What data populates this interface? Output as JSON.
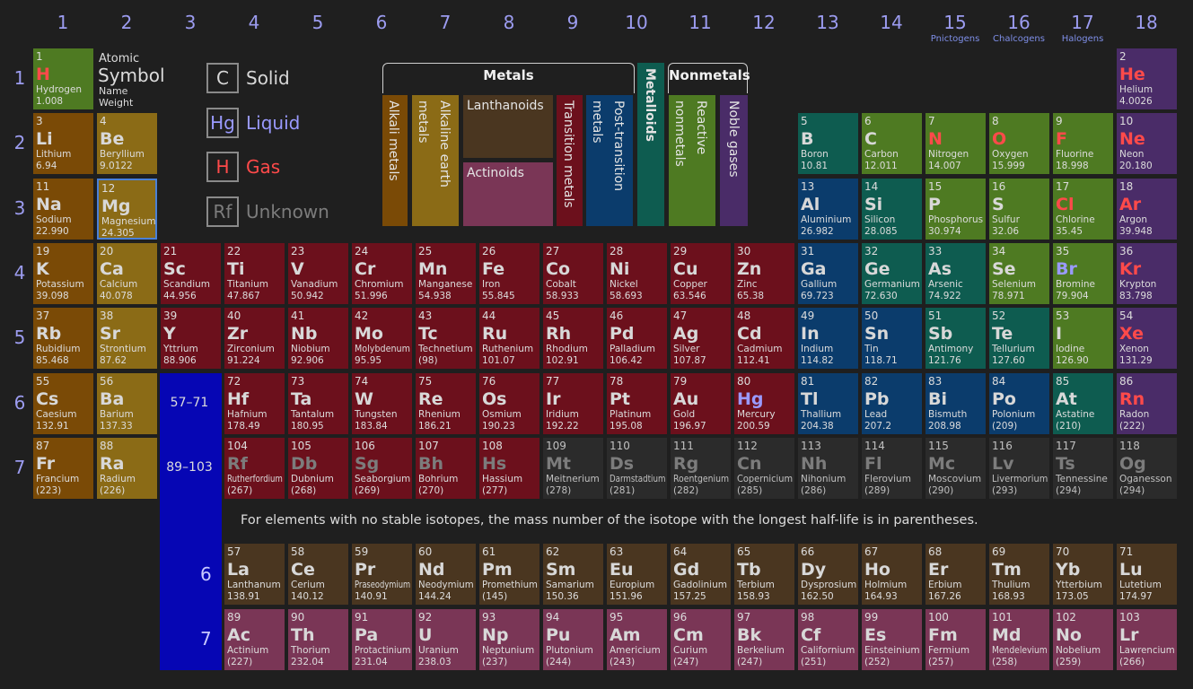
{
  "title_key": {
    "number": "Atomic",
    "symbol": "Symbol",
    "name": "Name",
    "weight": "Weight"
  },
  "groups": [
    {
      "number": 1
    },
    {
      "number": 2
    },
    {
      "number": 3
    },
    {
      "number": 4
    },
    {
      "number": 5
    },
    {
      "number": 6
    },
    {
      "number": 7
    },
    {
      "number": 8
    },
    {
      "number": 9
    },
    {
      "number": 10
    },
    {
      "number": 11
    },
    {
      "number": 12
    },
    {
      "number": 13
    },
    {
      "number": 14
    },
    {
      "number": 15,
      "note": "Pnictogens"
    },
    {
      "number": 16,
      "note": "Chalcogens"
    },
    {
      "number": 17,
      "note": "Halogens"
    },
    {
      "number": 18
    }
  ],
  "periods": [
    1,
    2,
    3,
    4,
    5,
    6,
    7
  ],
  "f_block_ranges": [
    "57–71",
    "89–103"
  ],
  "note": "For elements with no stable isotopes, the mass number of the isotope with the longest half-life is in parentheses.",
  "selected": 12,
  "category_groups": [
    "Metals",
    "Nonmetals"
  ],
  "categories": [
    {
      "label": "Alkali metals",
      "color": "#7a4a06"
    },
    {
      "label": "Alkaline earth metals",
      "color": "#8b6b16"
    },
    {
      "label": "Lanthanoids",
      "color": "#4a3620"
    },
    {
      "label": "Actinoids",
      "color": "#7a3656"
    },
    {
      "label": "Transition metals",
      "color": "#6c101c"
    },
    {
      "label": "Post-transition metals",
      "color": "#0b3c6c"
    },
    {
      "label": "Metalloids",
      "color": "#0e5c50"
    },
    {
      "label": "Reactive nonmetals",
      "color": "#4e7a22"
    },
    {
      "label": "Noble gases",
      "color": "#4a2c68"
    },
    {
      "color": "#2b2b2b"
    }
  ],
  "states": [
    {
      "symbol": "C",
      "label": "Solid",
      "color": "#d8d8d8"
    },
    {
      "symbol": "Hg",
      "label": "Liquid",
      "color": "#9a9aff"
    },
    {
      "symbol": "H",
      "label": "Gas",
      "color": "#ff4a4a"
    },
    {
      "symbol": "Rf",
      "label": "Unknown",
      "color": "#7c7c7c"
    }
  ],
  "elements": [
    {
      "n": 1,
      "s": "H",
      "name": "Hydrogen",
      "w": "1.008",
      "cat": 7,
      "st": 2
    },
    {
      "n": 2,
      "s": "He",
      "name": "Helium",
      "w": "4.0026",
      "cat": 8,
      "st": 2
    },
    {
      "n": 3,
      "s": "Li",
      "name": "Lithium",
      "w": "6.94",
      "cat": 0,
      "st": 0
    },
    {
      "n": 4,
      "s": "Be",
      "name": "Beryllium",
      "w": "9.0122",
      "cat": 1,
      "st": 0
    },
    {
      "n": 5,
      "s": "B",
      "name": "Boron",
      "w": "10.81",
      "cat": 6,
      "st": 0
    },
    {
      "n": 6,
      "s": "C",
      "name": "Carbon",
      "w": "12.011",
      "cat": 7,
      "st": 0
    },
    {
      "n": 7,
      "s": "N",
      "name": "Nitrogen",
      "w": "14.007",
      "cat": 7,
      "st": 2
    },
    {
      "n": 8,
      "s": "O",
      "name": "Oxygen",
      "w": "15.999",
      "cat": 7,
      "st": 2
    },
    {
      "n": 9,
      "s": "F",
      "name": "Fluorine",
      "w": "18.998",
      "cat": 7,
      "st": 2
    },
    {
      "n": 10,
      "s": "Ne",
      "name": "Neon",
      "w": "20.180",
      "cat": 8,
      "st": 2
    },
    {
      "n": 11,
      "s": "Na",
      "name": "Sodium",
      "w": "22.990",
      "cat": 0,
      "st": 0
    },
    {
      "n": 12,
      "s": "Mg",
      "name": "Magnesium",
      "w": "24.305",
      "cat": 1,
      "st": 0
    },
    {
      "n": 13,
      "s": "Al",
      "name": "Aluminium",
      "w": "26.982",
      "cat": 5,
      "st": 0
    },
    {
      "n": 14,
      "s": "Si",
      "name": "Silicon",
      "w": "28.085",
      "cat": 6,
      "st": 0
    },
    {
      "n": 15,
      "s": "P",
      "name": "Phosphorus",
      "w": "30.974",
      "cat": 7,
      "st": 0
    },
    {
      "n": 16,
      "s": "S",
      "name": "Sulfur",
      "w": "32.06",
      "cat": 7,
      "st": 0
    },
    {
      "n": 17,
      "s": "Cl",
      "name": "Chlorine",
      "w": "35.45",
      "cat": 7,
      "st": 2
    },
    {
      "n": 18,
      "s": "Ar",
      "name": "Argon",
      "w": "39.948",
      "cat": 8,
      "st": 2
    },
    {
      "n": 19,
      "s": "K",
      "name": "Potassium",
      "w": "39.098",
      "cat": 0,
      "st": 0
    },
    {
      "n": 20,
      "s": "Ca",
      "name": "Calcium",
      "w": "40.078",
      "cat": 1,
      "st": 0
    },
    {
      "n": 21,
      "s": "Sc",
      "name": "Scandium",
      "w": "44.956",
      "cat": 4,
      "st": 0
    },
    {
      "n": 22,
      "s": "Ti",
      "name": "Titanium",
      "w": "47.867",
      "cat": 4,
      "st": 0
    },
    {
      "n": 23,
      "s": "V",
      "name": "Vanadium",
      "w": "50.942",
      "cat": 4,
      "st": 0
    },
    {
      "n": 24,
      "s": "Cr",
      "name": "Chromium",
      "w": "51.996",
      "cat": 4,
      "st": 0
    },
    {
      "n": 25,
      "s": "Mn",
      "name": "Manganese",
      "w": "54.938",
      "cat": 4,
      "st": 0
    },
    {
      "n": 26,
      "s": "Fe",
      "name": "Iron",
      "w": "55.845",
      "cat": 4,
      "st": 0
    },
    {
      "n": 27,
      "s": "Co",
      "name": "Cobalt",
      "w": "58.933",
      "cat": 4,
      "st": 0
    },
    {
      "n": 28,
      "s": "Ni",
      "name": "Nickel",
      "w": "58.693",
      "cat": 4,
      "st": 0
    },
    {
      "n": 29,
      "s": "Cu",
      "name": "Copper",
      "w": "63.546",
      "cat": 4,
      "st": 0
    },
    {
      "n": 30,
      "s": "Zn",
      "name": "Zinc",
      "w": "65.38",
      "cat": 4,
      "st": 0
    },
    {
      "n": 31,
      "s": "Ga",
      "name": "Gallium",
      "w": "69.723",
      "cat": 5,
      "st": 0
    },
    {
      "n": 32,
      "s": "Ge",
      "name": "Germanium",
      "w": "72.630",
      "cat": 6,
      "st": 0
    },
    {
      "n": 33,
      "s": "As",
      "name": "Arsenic",
      "w": "74.922",
      "cat": 6,
      "st": 0
    },
    {
      "n": 34,
      "s": "Se",
      "name": "Selenium",
      "w": "78.971",
      "cat": 7,
      "st": 0
    },
    {
      "n": 35,
      "s": "Br",
      "name": "Bromine",
      "w": "79.904",
      "cat": 7,
      "st": 1
    },
    {
      "n": 36,
      "s": "Kr",
      "name": "Krypton",
      "w": "83.798",
      "cat": 8,
      "st": 2
    },
    {
      "n": 37,
      "s": "Rb",
      "name": "Rubidium",
      "w": "85.468",
      "cat": 0,
      "st": 0
    },
    {
      "n": 38,
      "s": "Sr",
      "name": "Strontium",
      "w": "87.62",
      "cat": 1,
      "st": 0
    },
    {
      "n": 39,
      "s": "Y",
      "name": "Yttrium",
      "w": "88.906",
      "cat": 4,
      "st": 0
    },
    {
      "n": 40,
      "s": "Zr",
      "name": "Zirconium",
      "w": "91.224",
      "cat": 4,
      "st": 0
    },
    {
      "n": 41,
      "s": "Nb",
      "name": "Niobium",
      "w": "92.906",
      "cat": 4,
      "st": 0
    },
    {
      "n": 42,
      "s": "Mo",
      "name": "Molybdenum",
      "w": "95.95",
      "cat": 4,
      "st": 0
    },
    {
      "n": 43,
      "s": "Tc",
      "name": "Technetium",
      "w": "(98)",
      "cat": 4,
      "st": 0
    },
    {
      "n": 44,
      "s": "Ru",
      "name": "Ruthenium",
      "w": "101.07",
      "cat": 4,
      "st": 0
    },
    {
      "n": 45,
      "s": "Rh",
      "name": "Rhodium",
      "w": "102.91",
      "cat": 4,
      "st": 0
    },
    {
      "n": 46,
      "s": "Pd",
      "name": "Palladium",
      "w": "106.42",
      "cat": 4,
      "st": 0
    },
    {
      "n": 47,
      "s": "Ag",
      "name": "Silver",
      "w": "107.87",
      "cat": 4,
      "st": 0
    },
    {
      "n": 48,
      "s": "Cd",
      "name": "Cadmium",
      "w": "112.41",
      "cat": 4,
      "st": 0
    },
    {
      "n": 49,
      "s": "In",
      "name": "Indium",
      "w": "114.82",
      "cat": 5,
      "st": 0
    },
    {
      "n": 50,
      "s": "Sn",
      "name": "Tin",
      "w": "118.71",
      "cat": 5,
      "st": 0
    },
    {
      "n": 51,
      "s": "Sb",
      "name": "Antimony",
      "w": "121.76",
      "cat": 6,
      "st": 0
    },
    {
      "n": 52,
      "s": "Te",
      "name": "Tellurium",
      "w": "127.60",
      "cat": 6,
      "st": 0
    },
    {
      "n": 53,
      "s": "I",
      "name": "Iodine",
      "w": "126.90",
      "cat": 7,
      "st": 0
    },
    {
      "n": 54,
      "s": "Xe",
      "name": "Xenon",
      "w": "131.29",
      "cat": 8,
      "st": 2
    },
    {
      "n": 55,
      "s": "Cs",
      "name": "Caesium",
      "w": "132.91",
      "cat": 0,
      "st": 0
    },
    {
      "n": 56,
      "s": "Ba",
      "name": "Barium",
      "w": "137.33",
      "cat": 1,
      "st": 0
    },
    {
      "n": 57,
      "s": "La",
      "name": "Lanthanum",
      "w": "138.91",
      "cat": 2,
      "st": 0
    },
    {
      "n": 58,
      "s": "Ce",
      "name": "Cerium",
      "w": "140.12",
      "cat": 2,
      "st": 0
    },
    {
      "n": 59,
      "s": "Pr",
      "name": "Praseodymium",
      "w": "140.91",
      "cat": 2,
      "st": 0
    },
    {
      "n": 60,
      "s": "Nd",
      "name": "Neodymium",
      "w": "144.24",
      "cat": 2,
      "st": 0
    },
    {
      "n": 61,
      "s": "Pm",
      "name": "Promethium",
      "w": "(145)",
      "cat": 2,
      "st": 0
    },
    {
      "n": 62,
      "s": "Sm",
      "name": "Samarium",
      "w": "150.36",
      "cat": 2,
      "st": 0
    },
    {
      "n": 63,
      "s": "Eu",
      "name": "Europium",
      "w": "151.96",
      "cat": 2,
      "st": 0
    },
    {
      "n": 64,
      "s": "Gd",
      "name": "Gadolinium",
      "w": "157.25",
      "cat": 2,
      "st": 0
    },
    {
      "n": 65,
      "s": "Tb",
      "name": "Terbium",
      "w": "158.93",
      "cat": 2,
      "st": 0
    },
    {
      "n": 66,
      "s": "Dy",
      "name": "Dysprosium",
      "w": "162.50",
      "cat": 2,
      "st": 0
    },
    {
      "n": 67,
      "s": "Ho",
      "name": "Holmium",
      "w": "164.93",
      "cat": 2,
      "st": 0
    },
    {
      "n": 68,
      "s": "Er",
      "name": "Erbium",
      "w": "167.26",
      "cat": 2,
      "st": 0
    },
    {
      "n": 69,
      "s": "Tm",
      "name": "Thulium",
      "w": "168.93",
      "cat": 2,
      "st": 0
    },
    {
      "n": 70,
      "s": "Yb",
      "name": "Ytterbium",
      "w": "173.05",
      "cat": 2,
      "st": 0
    },
    {
      "n": 71,
      "s": "Lu",
      "name": "Lutetium",
      "w": "174.97",
      "cat": 2,
      "st": 0
    },
    {
      "n": 72,
      "s": "Hf",
      "name": "Hafnium",
      "w": "178.49",
      "cat": 4,
      "st": 0
    },
    {
      "n": 73,
      "s": "Ta",
      "name": "Tantalum",
      "w": "180.95",
      "cat": 4,
      "st": 0
    },
    {
      "n": 74,
      "s": "W",
      "name": "Tungsten",
      "w": "183.84",
      "cat": 4,
      "st": 0
    },
    {
      "n": 75,
      "s": "Re",
      "name": "Rhenium",
      "w": "186.21",
      "cat": 4,
      "st": 0
    },
    {
      "n": 76,
      "s": "Os",
      "name": "Osmium",
      "w": "190.23",
      "cat": 4,
      "st": 0
    },
    {
      "n": 77,
      "s": "Ir",
      "name": "Iridium",
      "w": "192.22",
      "cat": 4,
      "st": 0
    },
    {
      "n": 78,
      "s": "Pt",
      "name": "Platinum",
      "w": "195.08",
      "cat": 4,
      "st": 0
    },
    {
      "n": 79,
      "s": "Au",
      "name": "Gold",
      "w": "196.97",
      "cat": 4,
      "st": 0
    },
    {
      "n": 80,
      "s": "Hg",
      "name": "Mercury",
      "w": "200.59",
      "cat": 4,
      "st": 1
    },
    {
      "n": 81,
      "s": "Tl",
      "name": "Thallium",
      "w": "204.38",
      "cat": 5,
      "st": 0
    },
    {
      "n": 82,
      "s": "Pb",
      "name": "Lead",
      "w": "207.2",
      "cat": 5,
      "st": 0
    },
    {
      "n": 83,
      "s": "Bi",
      "name": "Bismuth",
      "w": "208.98",
      "cat": 5,
      "st": 0
    },
    {
      "n": 84,
      "s": "Po",
      "name": "Polonium",
      "w": "(209)",
      "cat": 5,
      "st": 0
    },
    {
      "n": 85,
      "s": "At",
      "name": "Astatine",
      "w": "(210)",
      "cat": 6,
      "st": 0
    },
    {
      "n": 86,
      "s": "Rn",
      "name": "Radon",
      "w": "(222)",
      "cat": 8,
      "st": 2
    },
    {
      "n": 87,
      "s": "Fr",
      "name": "Francium",
      "w": "(223)",
      "cat": 0,
      "st": 0
    },
    {
      "n": 88,
      "s": "Ra",
      "name": "Radium",
      "w": "(226)",
      "cat": 1,
      "st": 0
    },
    {
      "n": 89,
      "s": "Ac",
      "name": "Actinium",
      "w": "(227)",
      "cat": 3,
      "st": 0
    },
    {
      "n": 90,
      "s": "Th",
      "name": "Thorium",
      "w": "232.04",
      "cat": 3,
      "st": 0
    },
    {
      "n": 91,
      "s": "Pa",
      "name": "Protactinium",
      "w": "231.04",
      "cat": 3,
      "st": 0
    },
    {
      "n": 92,
      "s": "U",
      "name": "Uranium",
      "w": "238.03",
      "cat": 3,
      "st": 0
    },
    {
      "n": 93,
      "s": "Np",
      "name": "Neptunium",
      "w": "(237)",
      "cat": 3,
      "st": 0
    },
    {
      "n": 94,
      "s": "Pu",
      "name": "Plutonium",
      "w": "(244)",
      "cat": 3,
      "st": 0
    },
    {
      "n": 95,
      "s": "Am",
      "name": "Americium",
      "w": "(243)",
      "cat": 3,
      "st": 0
    },
    {
      "n": 96,
      "s": "Cm",
      "name": "Curium",
      "w": "(247)",
      "cat": 3,
      "st": 0
    },
    {
      "n": 97,
      "s": "Bk",
      "name": "Berkelium",
      "w": "(247)",
      "cat": 3,
      "st": 0
    },
    {
      "n": 98,
      "s": "Cf",
      "name": "Californium",
      "w": "(251)",
      "cat": 3,
      "st": 0
    },
    {
      "n": 99,
      "s": "Es",
      "name": "Einsteinium",
      "w": "(252)",
      "cat": 3,
      "st": 0
    },
    {
      "n": 100,
      "s": "Fm",
      "name": "Fermium",
      "w": "(257)",
      "cat": 3,
      "st": 0
    },
    {
      "n": 101,
      "s": "Md",
      "name": "Mendelevium",
      "w": "(258)",
      "cat": 3,
      "st": 0
    },
    {
      "n": 102,
      "s": "No",
      "name": "Nobelium",
      "w": "(259)",
      "cat": 3,
      "st": 0
    },
    {
      "n": 103,
      "s": "Lr",
      "name": "Lawrencium",
      "w": "(266)",
      "cat": 3,
      "st": 0
    },
    {
      "n": 104,
      "s": "Rf",
      "name": "Rutherfordium",
      "w": "(267)",
      "cat": 4,
      "st": 3
    },
    {
      "n": 105,
      "s": "Db",
      "name": "Dubnium",
      "w": "(268)",
      "cat": 4,
      "st": 3
    },
    {
      "n": 106,
      "s": "Sg",
      "name": "Seaborgium",
      "w": "(269)",
      "cat": 4,
      "st": 3
    },
    {
      "n": 107,
      "s": "Bh",
      "name": "Bohrium",
      "w": "(270)",
      "cat": 4,
      "st": 3
    },
    {
      "n": 108,
      "s": "Hs",
      "name": "Hassium",
      "w": "(277)",
      "cat": 4,
      "st": 3
    },
    {
      "n": 109,
      "s": "Mt",
      "name": "Meitnerium",
      "w": "(278)",
      "cat": 9,
      "st": 3
    },
    {
      "n": 110,
      "s": "Ds",
      "name": "Darmstadtium",
      "w": "(281)",
      "cat": 9,
      "st": 3
    },
    {
      "n": 111,
      "s": "Rg",
      "name": "Roentgenium",
      "w": "(282)",
      "cat": 9,
      "st": 3
    },
    {
      "n": 112,
      "s": "Cn",
      "name": "Copernicium",
      "w": "(285)",
      "cat": 9,
      "st": 3
    },
    {
      "n": 113,
      "s": "Nh",
      "name": "Nihonium",
      "w": "(286)",
      "cat": 9,
      "st": 3
    },
    {
      "n": 114,
      "s": "Fl",
      "name": "Flerovium",
      "w": "(289)",
      "cat": 9,
      "st": 3
    },
    {
      "n": 115,
      "s": "Mc",
      "name": "Moscovium",
      "w": "(290)",
      "cat": 9,
      "st": 3
    },
    {
      "n": 116,
      "s": "Lv",
      "name": "Livermorium",
      "w": "(293)",
      "cat": 9,
      "st": 3
    },
    {
      "n": 117,
      "s": "Ts",
      "name": "Tennessine",
      "w": "(294)",
      "cat": 9,
      "st": 3
    },
    {
      "n": 118,
      "s": "Og",
      "name": "Oganesson",
      "w": "(294)",
      "cat": 9,
      "st": 3
    }
  ]
}
